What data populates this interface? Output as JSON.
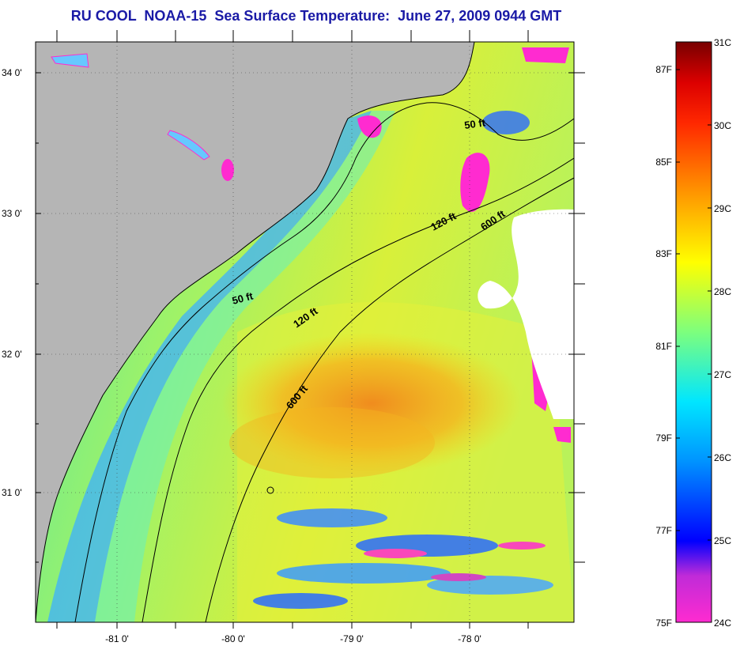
{
  "title": "RU COOL  NOAA-15  Sea Surface Temperature:  June 27, 2009 0944 GMT",
  "map": {
    "lat_labels": [
      "34 0'",
      "33 0'",
      "32 0'",
      "31 0'"
    ],
    "lon_labels": [
      "-81 0'",
      "-80 0'",
      "-79 0'",
      "-78 0'"
    ],
    "contours": [
      {
        "depth": "50 ft",
        "label": "50 ft"
      },
      {
        "depth": "120 ft",
        "label": "120 ft"
      },
      {
        "depth": "600 ft",
        "label": "600 ft"
      },
      {
        "depth": "50 ft",
        "label": "50 ft"
      },
      {
        "depth": "120 ft",
        "label": "120 ft"
      },
      {
        "depth": "600 ft",
        "label": "600 ft"
      }
    ],
    "colors": {
      "land": "#b5b5b5",
      "cloud": "#ffffff",
      "coast": "#000000"
    }
  },
  "colorbar": {
    "celsius_labels": [
      "31C",
      "30C",
      "29C",
      "28C",
      "27C",
      "26C",
      "25C",
      "24C"
    ],
    "fahrenheit_labels": [
      "87F",
      "85F",
      "83F",
      "81F",
      "79F",
      "77F",
      "75F"
    ],
    "celsius_range": [
      24,
      31
    ],
    "colormap": [
      "#ff2bd0",
      "#9b2bd8",
      "#0000ff",
      "#0096ff",
      "#00e6ff",
      "#7dff7d",
      "#ffff00",
      "#ff9600",
      "#ff2800",
      "#dc0000",
      "#780000"
    ]
  }
}
